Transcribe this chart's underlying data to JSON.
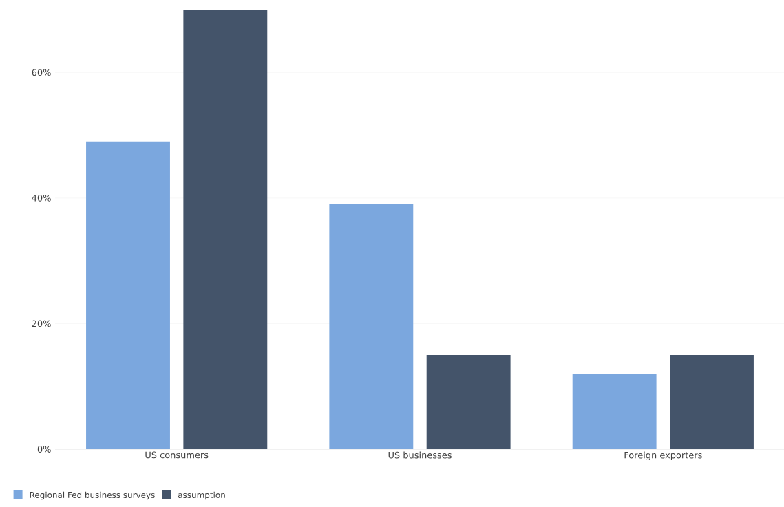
{
  "chart_data": {
    "type": "bar",
    "categories": [
      "US consumers",
      "US businesses",
      "Foreign exporters"
    ],
    "series": [
      {
        "name": "Regional Fed business surveys",
        "color": "#7ba7de",
        "values": [
          49,
          39,
          12
        ]
      },
      {
        "name": "assumption",
        "color": "#44546a",
        "values": [
          70,
          15,
          15
        ]
      }
    ],
    "ylim": [
      0,
      70
    ],
    "yticks": [
      {
        "value": 0,
        "label": "0%"
      },
      {
        "value": 20,
        "label": "20%"
      },
      {
        "value": 40,
        "label": "40%"
      },
      {
        "value": 60,
        "label": "60%"
      }
    ],
    "grid": "y",
    "legend": "bottom left"
  }
}
